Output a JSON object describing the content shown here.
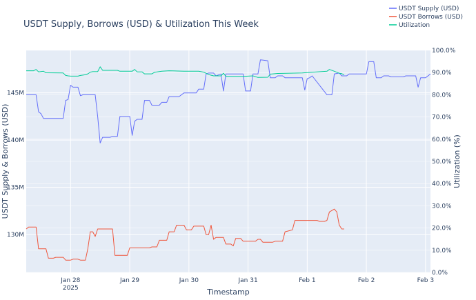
{
  "chart_data": {
    "type": "line",
    "title": "USDT Supply, Borrows (USD) & Utilization This Week",
    "xlabel": "Timestamp",
    "ylabel_left": "USDT Supply & Borrows (USD)",
    "ylabel_right": "Utilization (%)",
    "ylim_left": [
      126000000,
      149500000
    ],
    "ylim_right": [
      0,
      100
    ],
    "xlim": [
      "2025-01-27 06:00",
      "2025-02-03 02:00"
    ],
    "x_ticks": [
      {
        "t": "2025-01-28 00:00",
        "label": "Jan 28",
        "sublabel": "2025"
      },
      {
        "t": "2025-01-29 00:00",
        "label": "Jan 29"
      },
      {
        "t": "2025-01-30 00:00",
        "label": "Jan 30"
      },
      {
        "t": "2025-01-31 00:00",
        "label": "Jan 31"
      },
      {
        "t": "2025-02-01 00:00",
        "label": "Feb 1"
      },
      {
        "t": "2025-02-02 00:00",
        "label": "Feb 2"
      },
      {
        "t": "2025-02-03 00:00",
        "label": "Feb 3"
      }
    ],
    "y_left_ticks": [
      {
        "v": 130000000,
        "label": "130M"
      },
      {
        "v": 135000000,
        "label": "135M"
      },
      {
        "v": 140000000,
        "label": "140M"
      },
      {
        "v": 145000000,
        "label": "145M"
      }
    ],
    "y_right_ticks": [
      {
        "v": 0,
        "label": "0.0%"
      },
      {
        "v": 10,
        "label": "10.0%"
      },
      {
        "v": 20,
        "label": "20.0%"
      },
      {
        "v": 30,
        "label": "30.0%"
      },
      {
        "v": 40,
        "label": "40.0%"
      },
      {
        "v": 50,
        "label": "50.0%"
      },
      {
        "v": 60,
        "label": "60.0%"
      },
      {
        "v": 70,
        "label": "70.0%"
      },
      {
        "v": 80,
        "label": "80.0%"
      },
      {
        "v": 90,
        "label": "90.0%"
      },
      {
        "v": 100,
        "label": "100.0%"
      }
    ],
    "grid": true,
    "legend_position": "top-right",
    "series": [
      {
        "name": "USDT Supply (USD)",
        "axis": "left",
        "color": "#636efa",
        "points": [
          [
            "2025-01-27 06:00",
            144.8
          ],
          [
            "2025-01-27 10:00",
            144.8
          ],
          [
            "2025-01-27 11:00",
            143.0
          ],
          [
            "2025-01-27 12:00",
            142.8
          ],
          [
            "2025-01-27 13:00",
            142.3
          ],
          [
            "2025-01-27 21:00",
            142.3
          ],
          [
            "2025-01-27 22:00",
            144.2
          ],
          [
            "2025-01-27 23:00",
            144.3
          ],
          [
            "2025-01-28 00:00",
            145.8
          ],
          [
            "2025-01-28 01:00",
            145.6
          ],
          [
            "2025-01-28 03:00",
            145.6
          ],
          [
            "2025-01-28 04:00",
            144.7
          ],
          [
            "2025-01-28 05:00",
            144.8
          ],
          [
            "2025-01-28 10:00",
            144.8
          ],
          [
            "2025-01-28 11:00",
            142.5
          ],
          [
            "2025-01-28 12:00",
            139.7
          ],
          [
            "2025-01-28 13:00",
            140.3
          ],
          [
            "2025-01-28 16:00",
            140.3
          ],
          [
            "2025-01-28 17:00",
            140.4
          ],
          [
            "2025-01-28 19:00",
            140.4
          ],
          [
            "2025-01-28 20:00",
            142.5
          ],
          [
            "2025-01-29 00:00",
            142.5
          ],
          [
            "2025-01-29 01:00",
            140.5
          ],
          [
            "2025-01-29 02:00",
            142.0
          ],
          [
            "2025-01-29 03:00",
            142.2
          ],
          [
            "2025-01-29 05:00",
            142.2
          ],
          [
            "2025-01-29 06:00",
            144.2
          ],
          [
            "2025-01-29 08:00",
            144.2
          ],
          [
            "2025-01-29 09:00",
            143.7
          ],
          [
            "2025-01-29 12:00",
            143.7
          ],
          [
            "2025-01-29 13:00",
            144.0
          ],
          [
            "2025-01-29 15:00",
            144.0
          ],
          [
            "2025-01-29 16:00",
            144.6
          ],
          [
            "2025-01-29 20:00",
            144.6
          ],
          [
            "2025-01-29 22:00",
            145.0
          ],
          [
            "2025-01-30 03:00",
            145.0
          ],
          [
            "2025-01-30 04:00",
            145.4
          ],
          [
            "2025-01-30 06:00",
            145.4
          ],
          [
            "2025-01-30 07:00",
            147.0
          ],
          [
            "2025-01-30 08:00",
            147.1
          ],
          [
            "2025-01-30 10:00",
            147.1
          ],
          [
            "2025-01-30 11:00",
            146.8
          ],
          [
            "2025-01-30 13:00",
            147.0
          ],
          [
            "2025-01-30 14:00",
            145.2
          ],
          [
            "2025-01-30 15:00",
            147.0
          ],
          [
            "2025-01-30 22:00",
            147.0
          ],
          [
            "2025-01-30 23:00",
            145.2
          ],
          [
            "2025-01-31 01:00",
            145.2
          ],
          [
            "2025-01-31 02:00",
            147.0
          ],
          [
            "2025-01-31 04:00",
            147.0
          ],
          [
            "2025-01-31 05:00",
            148.5
          ],
          [
            "2025-01-31 08:00",
            148.4
          ],
          [
            "2025-01-31 09:00",
            146.6
          ],
          [
            "2025-01-31 11:00",
            146.6
          ],
          [
            "2025-01-31 12:00",
            146.8
          ],
          [
            "2025-01-31 14:00",
            146.8
          ],
          [
            "2025-01-31 15:00",
            146.6
          ],
          [
            "2025-01-31 22:00",
            146.6
          ],
          [
            "2025-01-31 23:00",
            145.3
          ],
          [
            "2025-02-01 00:00",
            146.5
          ],
          [
            "2025-02-01 01:00",
            146.6
          ],
          [
            "2025-02-01 02:00",
            146.8
          ],
          [
            "2025-02-01 08:00",
            144.8
          ],
          [
            "2025-02-01 10:00",
            144.8
          ],
          [
            "2025-02-01 11:00",
            147.0
          ],
          [
            "2025-02-01 13:00",
            147.1
          ],
          [
            "2025-02-01 14:00",
            146.8
          ],
          [
            "2025-02-01 16:00",
            146.8
          ],
          [
            "2025-02-01 17:00",
            147.0
          ],
          [
            "2025-02-02 00:00",
            147.0
          ],
          [
            "2025-02-02 01:00",
            148.3
          ],
          [
            "2025-02-02 03:00",
            148.3
          ],
          [
            "2025-02-02 04:00",
            146.6
          ],
          [
            "2025-02-02 06:00",
            146.6
          ],
          [
            "2025-02-02 07:00",
            146.8
          ],
          [
            "2025-02-02 09:00",
            146.8
          ],
          [
            "2025-02-02 10:00",
            146.7
          ],
          [
            "2025-02-02 15:00",
            146.7
          ],
          [
            "2025-02-02 16:00",
            146.8
          ],
          [
            "2025-02-02 20:00",
            146.8
          ],
          [
            "2025-02-02 21:00",
            145.6
          ],
          [
            "2025-02-02 22:00",
            146.6
          ],
          [
            "2025-02-03 00:00",
            146.6
          ],
          [
            "2025-02-03 01:00",
            146.8
          ],
          [
            "2025-02-03 02:00",
            147.0
          ]
        ]
      },
      {
        "name": "USDT Borrows (USD)",
        "axis": "left",
        "color": "#ef553b",
        "points": [
          [
            "2025-01-27 06:00",
            130.6
          ],
          [
            "2025-01-27 07:00",
            130.8
          ],
          [
            "2025-01-27 10:00",
            130.8
          ],
          [
            "2025-01-27 11:00",
            128.5
          ],
          [
            "2025-01-27 14:00",
            128.5
          ],
          [
            "2025-01-27 15:00",
            127.5
          ],
          [
            "2025-01-27 17:00",
            127.5
          ],
          [
            "2025-01-27 18:00",
            127.6
          ],
          [
            "2025-01-27 21:00",
            127.6
          ],
          [
            "2025-01-27 22:00",
            127.3
          ],
          [
            "2025-01-28 00:00",
            127.3
          ],
          [
            "2025-01-28 01:00",
            127.4
          ],
          [
            "2025-01-28 03:00",
            127.4
          ],
          [
            "2025-01-28 04:00",
            127.3
          ],
          [
            "2025-01-28 06:00",
            127.3
          ],
          [
            "2025-01-28 07:00",
            128.5
          ],
          [
            "2025-01-28 08:00",
            130.3
          ],
          [
            "2025-01-28 09:00",
            130.3
          ],
          [
            "2025-01-28 10:00",
            129.8
          ],
          [
            "2025-01-28 11:00",
            130.6
          ],
          [
            "2025-01-28 17:00",
            130.6
          ],
          [
            "2025-01-28 18:00",
            127.8
          ],
          [
            "2025-01-28 23:00",
            127.8
          ],
          [
            "2025-01-29 00:00",
            128.6
          ],
          [
            "2025-01-29 08:00",
            128.6
          ],
          [
            "2025-01-29 09:00",
            128.7
          ],
          [
            "2025-01-29 11:00",
            128.7
          ],
          [
            "2025-01-29 12:00",
            129.4
          ],
          [
            "2025-01-29 15:00",
            129.4
          ],
          [
            "2025-01-29 16:00",
            130.3
          ],
          [
            "2025-01-29 18:00",
            130.3
          ],
          [
            "2025-01-29 19:00",
            131.0
          ],
          [
            "2025-01-29 22:00",
            131.0
          ],
          [
            "2025-01-29 23:00",
            130.5
          ],
          [
            "2025-01-30 01:00",
            130.5
          ],
          [
            "2025-01-30 02:00",
            130.9
          ],
          [
            "2025-01-30 06:00",
            130.9
          ],
          [
            "2025-01-30 07:00",
            130.0
          ],
          [
            "2025-01-30 08:00",
            130.0
          ],
          [
            "2025-01-30 09:00",
            131.0
          ],
          [
            "2025-01-30 10:00",
            129.5
          ],
          [
            "2025-01-30 11:00",
            129.7
          ],
          [
            "2025-01-30 14:00",
            129.7
          ],
          [
            "2025-01-30 15:00",
            129.0
          ],
          [
            "2025-01-30 17:00",
            129.0
          ],
          [
            "2025-01-30 18:00",
            128.8
          ],
          [
            "2025-01-30 19:00",
            129.6
          ],
          [
            "2025-01-30 21:00",
            129.6
          ],
          [
            "2025-01-30 22:00",
            129.3
          ],
          [
            "2025-01-31 03:00",
            129.3
          ],
          [
            "2025-01-31 04:00",
            129.5
          ],
          [
            "2025-01-31 05:00",
            129.5
          ],
          [
            "2025-01-31 06:00",
            129.2
          ],
          [
            "2025-01-31 10:00",
            129.2
          ],
          [
            "2025-01-31 11:00",
            129.3
          ],
          [
            "2025-01-31 14:00",
            129.3
          ],
          [
            "2025-01-31 15:00",
            130.3
          ],
          [
            "2025-01-31 18:00",
            130.5
          ],
          [
            "2025-01-31 19:00",
            131.5
          ],
          [
            "2025-02-01 04:00",
            131.5
          ],
          [
            "2025-02-01 05:00",
            131.4
          ],
          [
            "2025-02-01 07:00",
            131.4
          ],
          [
            "2025-02-01 08:00",
            131.5
          ],
          [
            "2025-02-01 09:00",
            132.4
          ],
          [
            "2025-02-01 11:00",
            132.7
          ],
          [
            "2025-02-01 12:00",
            132.4
          ],
          [
            "2025-02-01 13:00",
            131.0
          ],
          [
            "2025-02-01 14:00",
            130.6
          ],
          [
            "2025-02-01 15:00",
            130.6
          ]
        ]
      },
      {
        "name": "Utilization",
        "axis": "right",
        "color": "#00cc96",
        "points": [
          [
            "2025-01-27 06:00",
            90.8
          ],
          [
            "2025-01-27 09:00",
            90.8
          ],
          [
            "2025-01-27 10:00",
            91.4
          ],
          [
            "2025-01-27 11:00",
            90.3
          ],
          [
            "2025-01-27 13:00",
            90.6
          ],
          [
            "2025-01-27 14:00",
            89.9
          ],
          [
            "2025-01-27 21:00",
            89.8
          ],
          [
            "2025-01-27 22:00",
            88.7
          ],
          [
            "2025-01-27 23:00",
            88.5
          ],
          [
            "2025-01-28 00:00",
            88.4
          ],
          [
            "2025-01-28 03:00",
            88.4
          ],
          [
            "2025-01-28 04:00",
            88.7
          ],
          [
            "2025-01-28 06:00",
            89.0
          ],
          [
            "2025-01-28 07:00",
            89.4
          ],
          [
            "2025-01-28 08:00",
            90.2
          ],
          [
            "2025-01-28 09:00",
            90.4
          ],
          [
            "2025-01-28 11:00",
            90.4
          ],
          [
            "2025-01-28 12:00",
            92.6
          ],
          [
            "2025-01-28 13:00",
            91.0
          ],
          [
            "2025-01-28 19:00",
            91.0
          ],
          [
            "2025-01-28 20:00",
            90.6
          ],
          [
            "2025-01-29 01:00",
            90.6
          ],
          [
            "2025-01-29 02:00",
            91.4
          ],
          [
            "2025-01-29 03:00",
            90.3
          ],
          [
            "2025-01-29 05:00",
            90.3
          ],
          [
            "2025-01-29 06:00",
            89.4
          ],
          [
            "2025-01-29 09:00",
            89.4
          ],
          [
            "2025-01-29 10:00",
            90.1
          ],
          [
            "2025-01-29 13:00",
            90.6
          ],
          [
            "2025-01-29 16:00",
            90.8
          ],
          [
            "2025-01-29 22:00",
            90.6
          ],
          [
            "2025-01-30 04:00",
            90.6
          ],
          [
            "2025-01-30 06:00",
            90.2
          ],
          [
            "2025-01-30 08:00",
            89.1
          ],
          [
            "2025-01-30 10:00",
            88.5
          ],
          [
            "2025-01-30 13:00",
            88.5
          ],
          [
            "2025-01-30 14:00",
            89.7
          ],
          [
            "2025-01-30 15:00",
            88.3
          ],
          [
            "2025-01-30 22:00",
            88.3
          ],
          [
            "2025-01-31 02:00",
            88.5
          ],
          [
            "2025-01-31 04:00",
            87.8
          ],
          [
            "2025-01-31 08:00",
            87.9
          ],
          [
            "2025-01-31 09:00",
            89.3
          ],
          [
            "2025-01-31 12:00",
            89.6
          ],
          [
            "2025-01-31 22:00",
            89.8
          ],
          [
            "2025-02-01 00:00",
            90.0
          ],
          [
            "2025-02-01 08:00",
            90.6
          ],
          [
            "2025-02-01 09:00",
            91.4
          ],
          [
            "2025-02-01 11:00",
            90.6
          ],
          [
            "2025-02-01 13:00",
            89.7
          ],
          [
            "2025-02-01 14:00",
            89.5
          ],
          [
            "2025-02-01 15:00",
            89.0
          ]
        ]
      }
    ]
  }
}
